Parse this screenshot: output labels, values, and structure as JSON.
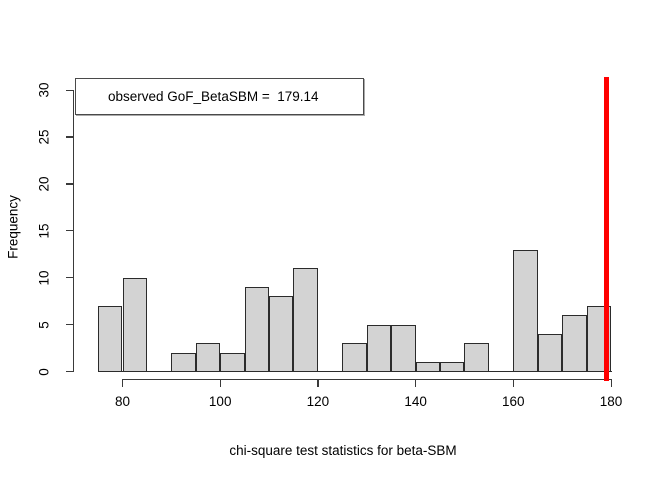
{
  "chart_data": {
    "type": "bar",
    "subtype": "histogram",
    "title": "",
    "xlabel": "chi-square test statistics for beta-SBM",
    "ylabel": "Frequency",
    "legend_text": "observed GoF_BetaSBM =  179.14",
    "bin_width": 5,
    "bin_starts": [
      75,
      80,
      85,
      90,
      95,
      100,
      105,
      110,
      115,
      120,
      125,
      130,
      135,
      140,
      145,
      150,
      155,
      160,
      165,
      170,
      175
    ],
    "counts": [
      7,
      10,
      0,
      2,
      3,
      2,
      9,
      8,
      11,
      0,
      3,
      5,
      5,
      1,
      1,
      3,
      0,
      13,
      4,
      6,
      7
    ],
    "x_ticks": [
      80,
      100,
      120,
      140,
      160,
      180
    ],
    "y_ticks": [
      0,
      5,
      10,
      15,
      20,
      25,
      30
    ],
    "xlim": [
      75,
      180
    ],
    "ylim": [
      0,
      30
    ],
    "observed_value": 179.14,
    "grid": "off",
    "legend_position": "top-left",
    "colors": {
      "bar_fill": "#d3d3d3",
      "bar_border": "#2b2b2b",
      "observed_line": "#ff0000",
      "axis": "#3a3a3a",
      "background": "#ffffff"
    }
  }
}
